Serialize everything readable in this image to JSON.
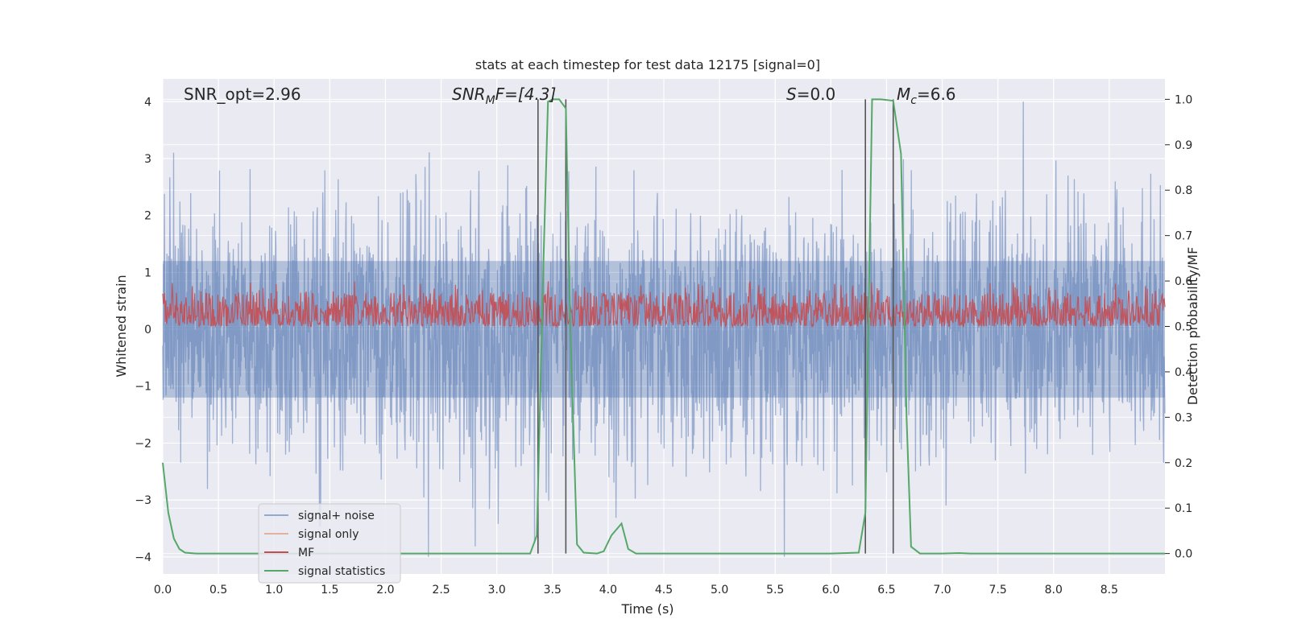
{
  "chart_data": {
    "type": "line",
    "title": "stats at each timestep for test data 12175 [signal=0]",
    "xlabel": "Time (s)",
    "ylabel": "Whitened strain",
    "ylabel_right": "Detection probability/MF",
    "xlim": [
      0.0,
      9.0
    ],
    "ylim": [
      -4.3,
      4.4
    ],
    "ylim_right": [
      -0.045,
      1.045
    ],
    "x_ticks": [
      "0.0",
      "0.5",
      "1.0",
      "1.5",
      "2.0",
      "2.5",
      "3.0",
      "3.5",
      "4.0",
      "4.5",
      "5.0",
      "5.5",
      "6.0",
      "6.5",
      "7.0",
      "7.5",
      "8.0",
      "8.5"
    ],
    "y_ticks": [
      "4",
      "3",
      "2",
      "1",
      "0",
      "−1",
      "−2",
      "−3",
      "−4"
    ],
    "y_ticks_right": [
      "1.0",
      "0.9",
      "0.8",
      "0.7",
      "0.6",
      "0.5",
      "0.4",
      "0.3",
      "0.2",
      "0.1",
      "0.0"
    ],
    "grid": true,
    "legend_position": "lower-left",
    "annotations": {
      "snr_opt": "SNR_opt=2.96",
      "snr_mf_base": "SNR",
      "snr_mf_sub": "M",
      "snr_mf_rest": "F=[4.3]",
      "s_var": "S",
      "s_rest": "=0.0",
      "mc_var": "M",
      "mc_sub": "c",
      "mc_rest": "=6.6"
    },
    "vertical_lines_x": [
      3.37,
      3.62,
      6.31,
      6.56
    ],
    "series": [
      {
        "name": "signal+ noise",
        "color": "#4c72b0",
        "description_range": [
          -4.0,
          4.0
        ],
        "envelope_typical": [
          -1.5,
          1.5
        ]
      },
      {
        "name": "signal only",
        "color": "#dd8452",
        "values": []
      },
      {
        "name": "MF",
        "color": "#c44e52",
        "axis": "right",
        "range": [
          0.5,
          0.6
        ]
      },
      {
        "name": "signal statistics",
        "color": "#55a868",
        "axis": "right",
        "points": [
          [
            0.0,
            0.2
          ],
          [
            0.05,
            0.09
          ],
          [
            0.1,
            0.033
          ],
          [
            0.15,
            0.01
          ],
          [
            0.2,
            0.002
          ],
          [
            0.3,
            0.0
          ],
          [
            1.0,
            0.0
          ],
          [
            2.0,
            0.0
          ],
          [
            3.0,
            0.0
          ],
          [
            3.3,
            0.0
          ],
          [
            3.36,
            0.04
          ],
          [
            3.42,
            0.65
          ],
          [
            3.46,
            0.995
          ],
          [
            3.5,
            1.0
          ],
          [
            3.56,
            1.0
          ],
          [
            3.62,
            0.98
          ],
          [
            3.66,
            0.5
          ],
          [
            3.72,
            0.02
          ],
          [
            3.78,
            0.002
          ],
          [
            3.9,
            0.0
          ],
          [
            3.96,
            0.005
          ],
          [
            4.03,
            0.04
          ],
          [
            4.12,
            0.066
          ],
          [
            4.18,
            0.01
          ],
          [
            4.25,
            0.0
          ],
          [
            5.0,
            0.0
          ],
          [
            6.0,
            0.0
          ],
          [
            6.25,
            0.002
          ],
          [
            6.31,
            0.09
          ],
          [
            6.37,
            1.0
          ],
          [
            6.45,
            1.0
          ],
          [
            6.56,
            0.997
          ],
          [
            6.63,
            0.88
          ],
          [
            6.68,
            0.3
          ],
          [
            6.72,
            0.015
          ],
          [
            6.8,
            0.0
          ],
          [
            7.0,
            0.0
          ],
          [
            7.15,
            0.001
          ],
          [
            7.25,
            0.0
          ],
          [
            9.0,
            0.0
          ]
        ]
      }
    ]
  },
  "colors": {
    "background": "#eaeaf2",
    "grid": "#ffffff",
    "vertical_line": "#555555"
  }
}
